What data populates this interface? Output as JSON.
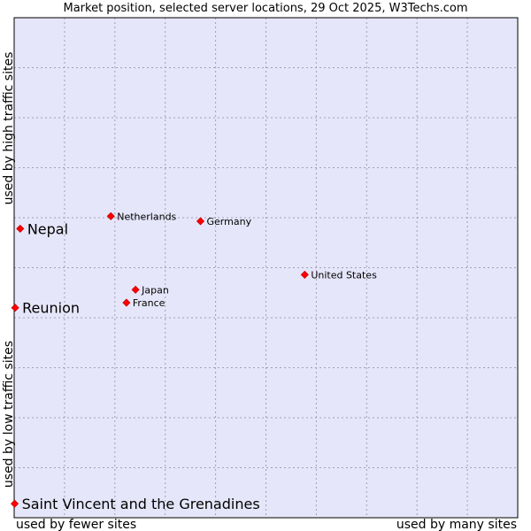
{
  "chart_data": {
    "type": "scatter",
    "title": "Market position, selected server locations, 29 Oct 2025, W3Techs.com",
    "xlabel_left": "used by fewer sites",
    "xlabel_right": "used by many sites",
    "ylabel_top": "used by high traffic sites",
    "ylabel_bottom": "used by low traffic sites",
    "xlim": [
      0,
      100
    ],
    "ylim": [
      0,
      100
    ],
    "grid": true,
    "colors": {
      "plot_bg": "#e6e6fa",
      "grid": "#a0a0b4",
      "point": "#ff0000",
      "point_edge": "#cc0000"
    },
    "points": [
      {
        "label": "Netherlands",
        "x": 19.2,
        "y": 60.3,
        "highlight": false
      },
      {
        "label": "Germany",
        "x": 37.0,
        "y": 59.3,
        "highlight": false
      },
      {
        "label": "United States",
        "x": 57.7,
        "y": 48.6,
        "highlight": false
      },
      {
        "label": "Japan",
        "x": 24.1,
        "y": 45.6,
        "highlight": false
      },
      {
        "label": "France",
        "x": 22.3,
        "y": 43.0,
        "highlight": false
      },
      {
        "label": "Nepal",
        "x": 1.2,
        "y": 57.8,
        "highlight": true
      },
      {
        "label": "Reunion",
        "x": 0.2,
        "y": 42.0,
        "highlight": true
      },
      {
        "label": "Saint Vincent and the Grenadines",
        "x": 0.1,
        "y": 2.8,
        "highlight": true
      }
    ]
  }
}
